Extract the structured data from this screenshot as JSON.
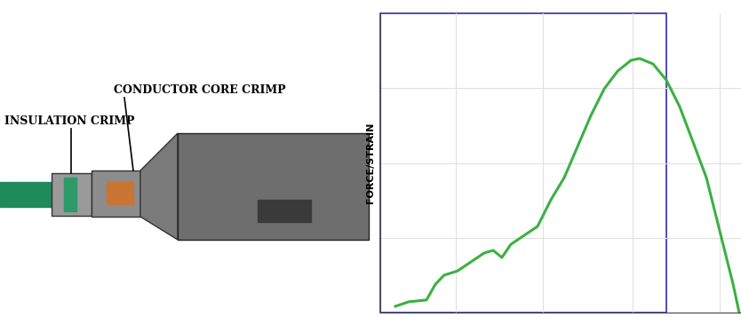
{
  "photo": {
    "labels": [
      "INSULATION CRIMP",
      "CONDUCTOR CORE CRIMP"
    ]
  },
  "chart_data": {
    "type": "line",
    "y_label": "FORCE/STRAIN",
    "x": [
      4.2,
      7.9,
      12.8,
      15.3,
      17.7,
      21.4,
      25.1,
      28.8,
      31.3,
      33.7,
      36.2,
      39.9,
      43.6,
      47.3,
      51.0,
      54.7,
      58.4,
      62.1,
      65.8,
      69.5,
      71.9,
      75.6,
      79.3,
      83.0,
      86.7,
      90.4,
      94.1,
      97.8,
      99.5
    ],
    "values": [
      2.1,
      3.6,
      4.2,
      9.5,
      12.5,
      13.9,
      16.9,
      19.9,
      20.8,
      18.4,
      22.8,
      25.8,
      28.8,
      37.7,
      45.1,
      55.5,
      65.9,
      74.8,
      80.7,
      84.3,
      84.9,
      83.1,
      77.7,
      68.8,
      57.0,
      45.1,
      27.3,
      9.5,
      0.0
    ],
    "color": "#3cb043",
    "xlim": [
      0,
      100
    ],
    "ylim": [
      0,
      100
    ],
    "xticks": [
      21,
      45,
      70,
      94
    ],
    "yticks": [
      25,
      50,
      75
    ],
    "grid": true,
    "tick_labels": false
  }
}
